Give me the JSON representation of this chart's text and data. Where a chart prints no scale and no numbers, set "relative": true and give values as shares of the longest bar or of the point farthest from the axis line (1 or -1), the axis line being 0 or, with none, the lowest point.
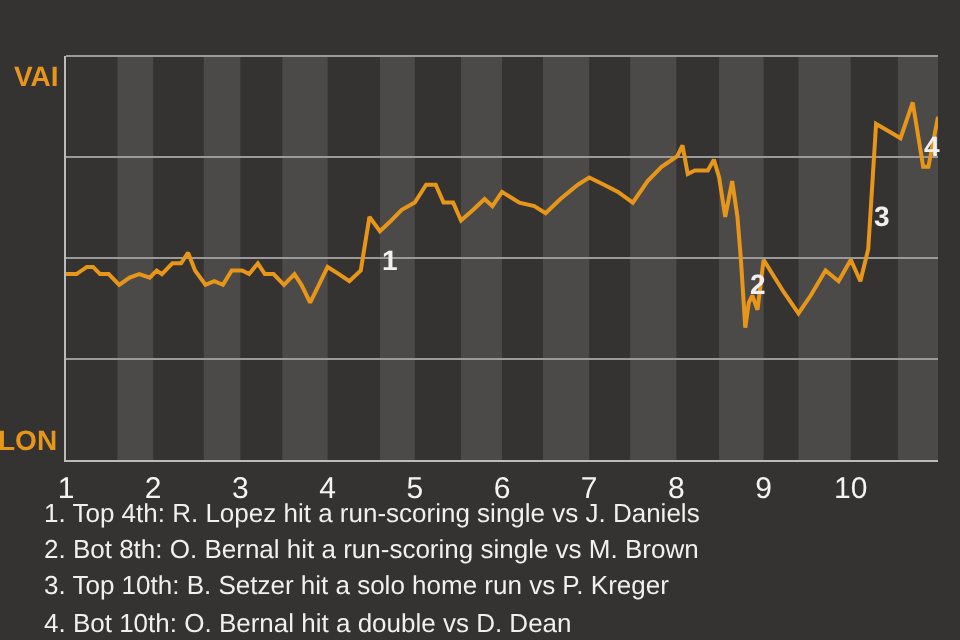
{
  "chart_data": {
    "type": "line",
    "relative": true,
    "x": [
      1.0,
      1.12,
      1.24,
      1.31,
      1.39,
      1.49,
      1.61,
      1.73,
      1.84,
      1.96,
      2.04,
      2.1,
      2.22,
      2.32,
      2.4,
      2.48,
      2.6,
      2.7,
      2.8,
      2.9,
      3.02,
      3.1,
      3.2,
      3.28,
      3.38,
      3.5,
      3.62,
      3.7,
      3.8,
      3.9,
      4.0,
      4.13,
      4.25,
      4.38,
      4.48,
      4.6,
      4.73,
      4.85,
      5.0,
      5.13,
      5.24,
      5.33,
      5.44,
      5.53,
      5.67,
      5.8,
      5.89,
      6.0,
      6.2,
      6.37,
      6.5,
      6.67,
      6.87,
      7.0,
      7.17,
      7.33,
      7.5,
      7.67,
      7.83,
      8.01,
      8.07,
      8.13,
      8.21,
      8.36,
      8.43,
      8.49,
      8.56,
      8.64,
      8.7,
      8.74,
      8.79,
      8.83,
      8.87,
      8.93,
      9.0,
      9.23,
      9.4,
      9.54,
      9.71,
      9.86,
      10.0,
      10.11,
      10.2,
      10.29,
      10.43,
      10.57,
      10.71,
      10.83,
      10.89,
      11.0
    ],
    "series": [
      {
        "color": "#e8961a",
        "values": [
          0.52,
          0.52,
          0.54,
          0.54,
          0.52,
          0.52,
          0.49,
          0.51,
          0.52,
          0.51,
          0.53,
          0.52,
          0.55,
          0.55,
          0.58,
          0.53,
          0.49,
          0.5,
          0.49,
          0.53,
          0.53,
          0.52,
          0.55,
          0.52,
          0.52,
          0.49,
          0.52,
          0.49,
          0.44,
          0.49,
          0.54,
          0.52,
          0.5,
          0.53,
          0.68,
          0.64,
          0.67,
          0.7,
          0.72,
          0.77,
          0.77,
          0.72,
          0.72,
          0.67,
          0.7,
          0.73,
          0.71,
          0.75,
          0.72,
          0.71,
          0.69,
          0.73,
          0.77,
          0.79,
          0.77,
          0.75,
          0.72,
          0.78,
          0.82,
          0.85,
          0.88,
          0.8,
          0.81,
          0.81,
          0.84,
          0.79,
          0.68,
          0.78,
          0.68,
          0.56,
          0.37,
          0.44,
          0.46,
          0.42,
          0.56,
          0.47,
          0.41,
          0.46,
          0.53,
          0.5,
          0.56,
          0.5,
          0.59,
          0.94,
          0.92,
          0.9,
          1,
          0.82,
          0.82,
          0.96
        ]
      }
    ],
    "xlim": [
      1,
      11
    ],
    "xticks": [
      1,
      2,
      3,
      4,
      5,
      6,
      7,
      8,
      9,
      10
    ],
    "grid": "y",
    "marker": "none",
    "line_style": "solid",
    "bands": [
      {
        "axis": "x",
        "from": 1.59,
        "to": 2,
        "color": "#4b4a48"
      },
      {
        "axis": "x",
        "from": 2.58,
        "to": 3,
        "color": "#4b4a48"
      },
      {
        "axis": "x",
        "from": 3.48,
        "to": 4,
        "color": "#4b4a48"
      },
      {
        "axis": "x",
        "from": 4.6,
        "to": 5,
        "color": "#4b4a48"
      },
      {
        "axis": "x",
        "from": 5.53,
        "to": 6,
        "color": "#4b4a48"
      },
      {
        "axis": "x",
        "from": 6.47,
        "to": 7,
        "color": "#4b4a48"
      },
      {
        "axis": "x",
        "from": 7.47,
        "to": 8,
        "color": "#4b4a48"
      },
      {
        "axis": "x",
        "from": 8.49,
        "to": 9,
        "color": "#4b4a48"
      },
      {
        "axis": "x",
        "from": 9.4,
        "to": 10,
        "color": "#4b4a48"
      },
      {
        "axis": "x",
        "from": 10.54,
        "to": 11,
        "color": "#4b4a48"
      }
    ],
    "annotations": [
      "VAI",
      "LON",
      {
        "text": "1",
        "x": 4.58,
        "y": 0.56
      },
      {
        "text": "2",
        "x": 8.79,
        "y": 0.49
      },
      {
        "text": "3",
        "x": 10.22,
        "y": 0.68
      },
      {
        "text": "4",
        "x": 10.92,
        "y": 0.88
      },
      "1. Top 4th: R. Lopez hit a run-scoring single vs J. Daniels",
      "2. Bot 8th: O. Bernal hit a run-scoring single vs M. Brown",
      "3. Top 10th: B. Setzer hit a solo home run vs P. Kreger",
      "4. Bot 10th: O. Bernal hit a double vs D. Dean"
    ]
  }
}
